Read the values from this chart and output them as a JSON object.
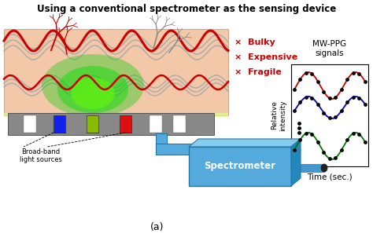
{
  "title": "Using a conventional spectrometer as the sensing device",
  "title_fontsize": 8.5,
  "title_fontweight": "bold",
  "bg_color": "#ffffff",
  "skin_color": "#f2c8a8",
  "drawbacks": [
    "Bulky",
    "Expensive",
    "Fragile"
  ],
  "drawback_color": "#cc0000",
  "label_bb_light": "Broad-band\nlight sources",
  "label_spectrometer": "Spectrometer",
  "label_mwppg": "MW-PPG\nsignals",
  "label_rel_intensity": "Relative\nintensity",
  "label_time": "Time (sec.)",
  "label_a": "(a)",
  "signal_colors": [
    "#cc0000",
    "#0000cc",
    "#007700"
  ],
  "led_colors": [
    "#1122ee",
    "#88bb00",
    "#dd1111"
  ]
}
